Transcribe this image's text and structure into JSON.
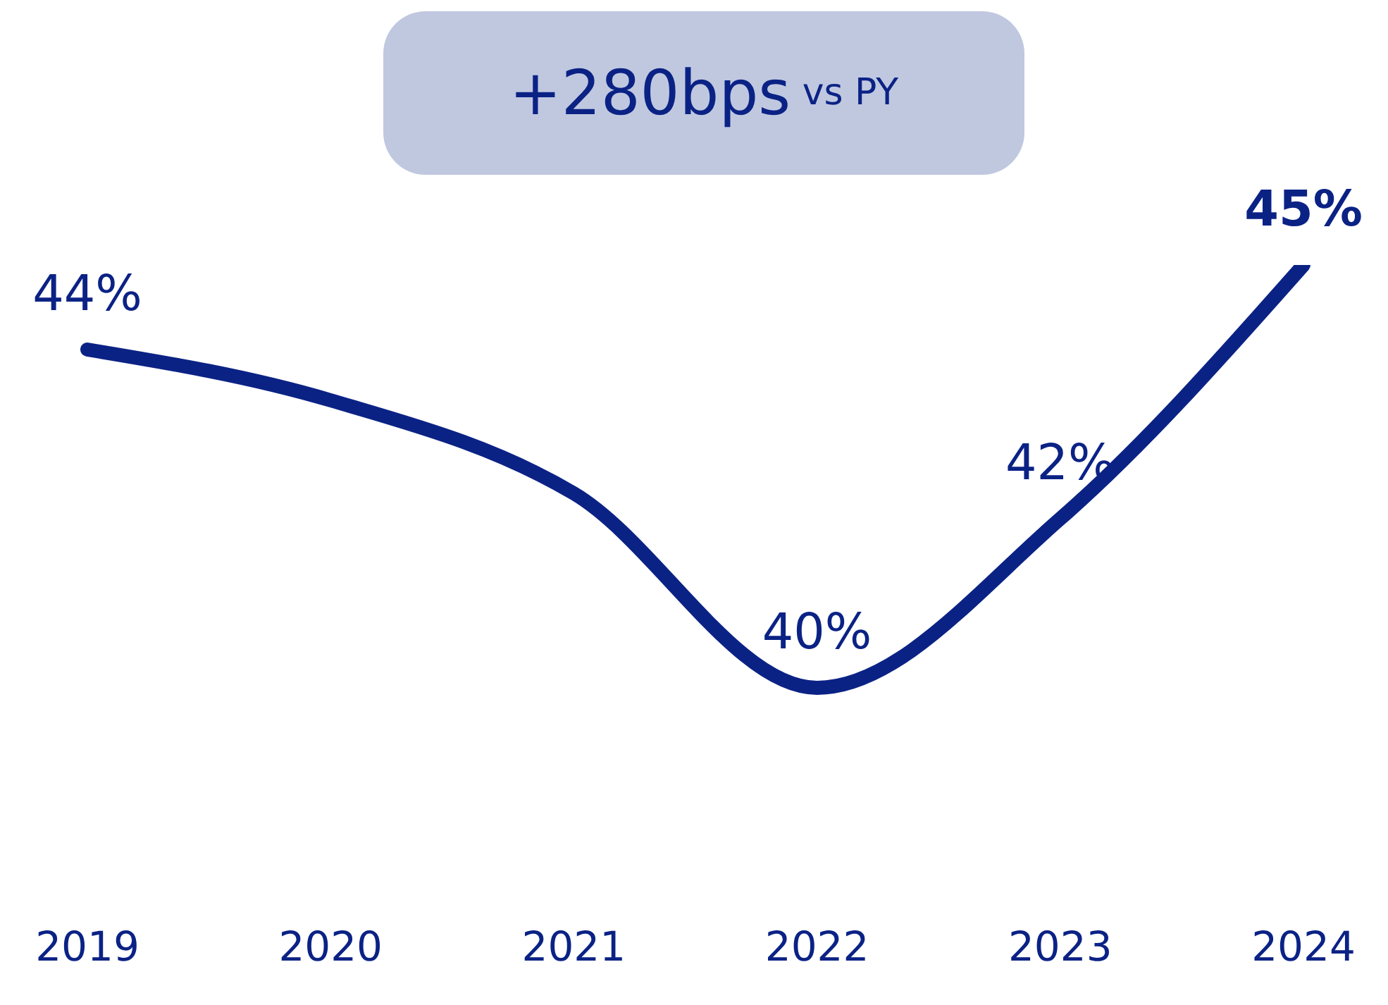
{
  "chart_data": {
    "type": "line",
    "categories": [
      "2019",
      "2020",
      "2021",
      "2022",
      "2023",
      "2024"
    ],
    "series": [
      {
        "color": "#0b2285",
        "values": [
          44,
          43.4,
          42.3,
          40,
          42,
          45
        ],
        "value_labels": [
          "44%",
          null,
          null,
          "40%",
          "42%",
          "45%"
        ]
      }
    ],
    "annotations": [
      "+280bps vs PY"
    ],
    "grid": false,
    "legend": false,
    "marker": "none"
  }
}
